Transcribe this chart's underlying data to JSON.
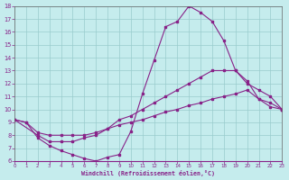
{
  "bg_color": "#c5eced",
  "line_color": "#882288",
  "grid_color": "#99cccc",
  "xlim": [
    0,
    23
  ],
  "ylim": [
    6,
    18
  ],
  "xticks": [
    0,
    1,
    2,
    3,
    4,
    5,
    6,
    7,
    8,
    9,
    10,
    11,
    12,
    13,
    14,
    15,
    16,
    17,
    18,
    19,
    20,
    21,
    22,
    23
  ],
  "yticks": [
    6,
    7,
    8,
    9,
    10,
    11,
    12,
    13,
    14,
    15,
    16,
    17,
    18
  ],
  "xlabel": "Windchill (Refroidissement éolien,°C)",
  "curve1_x": [
    0,
    1,
    2,
    3,
    4,
    5,
    6,
    7,
    8,
    9,
    10,
    11,
    12,
    13,
    14,
    15,
    16,
    17,
    18,
    19,
    20,
    21,
    22,
    23
  ],
  "curve1_y": [
    9.2,
    9.0,
    7.8,
    7.2,
    6.8,
    6.5,
    6.2,
    6.0,
    6.3,
    6.5,
    8.3,
    11.2,
    13.8,
    16.4,
    16.8,
    18.0,
    17.5,
    16.8,
    15.3,
    13.0,
    12.2,
    10.8,
    10.2,
    10.0
  ],
  "curve2_x": [
    0,
    2,
    3,
    4,
    5,
    6,
    7,
    8,
    9,
    10,
    11,
    12,
    13,
    14,
    15,
    16,
    17,
    18,
    19,
    20,
    21,
    22,
    23
  ],
  "curve2_y": [
    9.2,
    8.0,
    7.5,
    7.5,
    7.5,
    7.8,
    8.0,
    8.5,
    9.2,
    9.5,
    10.0,
    10.5,
    11.0,
    11.5,
    12.0,
    12.5,
    13.0,
    13.0,
    13.0,
    12.0,
    11.5,
    11.0,
    10.0
  ],
  "curve3_x": [
    0,
    1,
    2,
    3,
    4,
    5,
    6,
    7,
    8,
    9,
    10,
    11,
    12,
    13,
    14,
    15,
    16,
    17,
    18,
    19,
    20,
    21,
    22,
    23
  ],
  "curve3_y": [
    9.2,
    9.0,
    8.2,
    8.0,
    8.0,
    8.0,
    8.0,
    8.2,
    8.5,
    8.8,
    9.0,
    9.2,
    9.5,
    9.8,
    10.0,
    10.3,
    10.5,
    10.8,
    11.0,
    11.2,
    11.5,
    10.8,
    10.5,
    10.0
  ]
}
